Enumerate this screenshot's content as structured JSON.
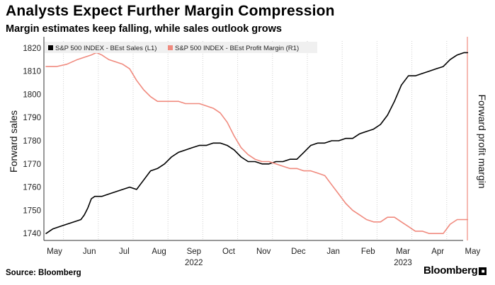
{
  "header": {
    "title": "Analysts Expect Further Margin Compression",
    "subtitle": "Margin estimates keep falling, while sales outlook grows"
  },
  "footer": {
    "source": "Source: Bloomberg",
    "brand": "Bloomberg",
    "brand_mark": "■"
  },
  "chart_data": {
    "type": "line",
    "title": "Analysts Expect Further Margin Compression",
    "subtitle": "Margin estimates keep falling, while sales outlook grows",
    "ylabel": "Forward sales",
    "ylabel_right": "Forward profit margin",
    "ylim": [
      1737,
      1823
    ],
    "yticks": [
      1740,
      1750,
      1760,
      1770,
      1780,
      1790,
      1800,
      1810,
      1820
    ],
    "x_ticks": [
      "May",
      "Jun",
      "Jul",
      "Aug",
      "Sep",
      "Oct",
      "Nov",
      "Dec",
      "Jan",
      "Feb",
      "Mar",
      "Apr",
      "May"
    ],
    "year_labels": [
      {
        "label": "2022",
        "month_index": 4
      },
      {
        "label": "2023",
        "month_index": 10
      }
    ],
    "grid": "vertical dotted",
    "legend": "top-left",
    "series": [
      {
        "name": "S&P 500 INDEX - BEst Sales (L1)",
        "color": "#000000",
        "axis": "left",
        "points": [
          [
            0,
            1740
          ],
          [
            0.2,
            1742
          ],
          [
            0.4,
            1743
          ],
          [
            0.6,
            1744
          ],
          [
            0.8,
            1745
          ],
          [
            1.0,
            1746
          ],
          [
            1.1,
            1748
          ],
          [
            1.2,
            1751
          ],
          [
            1.3,
            1755
          ],
          [
            1.4,
            1756
          ],
          [
            1.6,
            1756
          ],
          [
            1.8,
            1757
          ],
          [
            2.0,
            1758
          ],
          [
            2.2,
            1759
          ],
          [
            2.4,
            1760
          ],
          [
            2.6,
            1759
          ],
          [
            2.8,
            1763
          ],
          [
            3.0,
            1767
          ],
          [
            3.2,
            1768
          ],
          [
            3.4,
            1770
          ],
          [
            3.6,
            1773
          ],
          [
            3.8,
            1775
          ],
          [
            4.0,
            1776
          ],
          [
            4.2,
            1777
          ],
          [
            4.4,
            1778
          ],
          [
            4.6,
            1778
          ],
          [
            4.8,
            1779
          ],
          [
            5.0,
            1779
          ],
          [
            5.2,
            1778
          ],
          [
            5.4,
            1776
          ],
          [
            5.6,
            1773
          ],
          [
            5.8,
            1771
          ],
          [
            6.0,
            1771
          ],
          [
            6.2,
            1770
          ],
          [
            6.4,
            1770
          ],
          [
            6.6,
            1771
          ],
          [
            6.8,
            1771
          ],
          [
            7.0,
            1772
          ],
          [
            7.2,
            1772
          ],
          [
            7.4,
            1775
          ],
          [
            7.6,
            1778
          ],
          [
            7.8,
            1779
          ],
          [
            8.0,
            1779
          ],
          [
            8.2,
            1780
          ],
          [
            8.4,
            1780
          ],
          [
            8.6,
            1781
          ],
          [
            8.8,
            1781
          ],
          [
            9.0,
            1783
          ],
          [
            9.2,
            1784
          ],
          [
            9.4,
            1785
          ],
          [
            9.6,
            1787
          ],
          [
            9.8,
            1791
          ],
          [
            10.0,
            1797
          ],
          [
            10.2,
            1804
          ],
          [
            10.4,
            1808
          ],
          [
            10.6,
            1808
          ],
          [
            10.8,
            1809
          ],
          [
            11.0,
            1810
          ],
          [
            11.2,
            1811
          ],
          [
            11.4,
            1812
          ],
          [
            11.6,
            1815
          ],
          [
            11.8,
            1817
          ],
          [
            12.0,
            1818
          ],
          [
            12.1,
            1818
          ]
        ]
      },
      {
        "name": "S&P 500 INDEX - BEst Profit Margin (R1)",
        "color": "#f08a7e",
        "axis": "right",
        "points": [
          [
            0,
            1812
          ],
          [
            0.3,
            1812
          ],
          [
            0.6,
            1813
          ],
          [
            0.9,
            1815
          ],
          [
            1.1,
            1816
          ],
          [
            1.3,
            1817
          ],
          [
            1.45,
            1818
          ],
          [
            1.6,
            1817
          ],
          [
            1.7,
            1816
          ],
          [
            1.8,
            1815
          ],
          [
            2.0,
            1814
          ],
          [
            2.2,
            1813
          ],
          [
            2.4,
            1811
          ],
          [
            2.6,
            1806
          ],
          [
            2.8,
            1802
          ],
          [
            3.0,
            1799
          ],
          [
            3.2,
            1797
          ],
          [
            3.4,
            1797
          ],
          [
            3.6,
            1797
          ],
          [
            3.8,
            1797
          ],
          [
            4.0,
            1796
          ],
          [
            4.2,
            1796
          ],
          [
            4.4,
            1796
          ],
          [
            4.6,
            1795
          ],
          [
            4.8,
            1794
          ],
          [
            5.0,
            1792
          ],
          [
            5.2,
            1788
          ],
          [
            5.4,
            1782
          ],
          [
            5.6,
            1777
          ],
          [
            5.8,
            1774
          ],
          [
            6.0,
            1772
          ],
          [
            6.2,
            1771
          ],
          [
            6.4,
            1771
          ],
          [
            6.6,
            1770
          ],
          [
            6.8,
            1769
          ],
          [
            7.0,
            1768
          ],
          [
            7.2,
            1768
          ],
          [
            7.4,
            1767
          ],
          [
            7.6,
            1767
          ],
          [
            7.8,
            1766
          ],
          [
            8.0,
            1765
          ],
          [
            8.2,
            1761
          ],
          [
            8.4,
            1757
          ],
          [
            8.6,
            1753
          ],
          [
            8.8,
            1750
          ],
          [
            9.0,
            1748
          ],
          [
            9.2,
            1746
          ],
          [
            9.4,
            1745
          ],
          [
            9.6,
            1745
          ],
          [
            9.8,
            1747
          ],
          [
            10.0,
            1747
          ],
          [
            10.2,
            1745
          ],
          [
            10.4,
            1743
          ],
          [
            10.6,
            1741
          ],
          [
            10.8,
            1741
          ],
          [
            11.0,
            1740
          ],
          [
            11.2,
            1740
          ],
          [
            11.4,
            1740
          ],
          [
            11.6,
            1744
          ],
          [
            11.8,
            1746
          ],
          [
            12.0,
            1746
          ],
          [
            12.1,
            1746
          ]
        ]
      }
    ]
  }
}
